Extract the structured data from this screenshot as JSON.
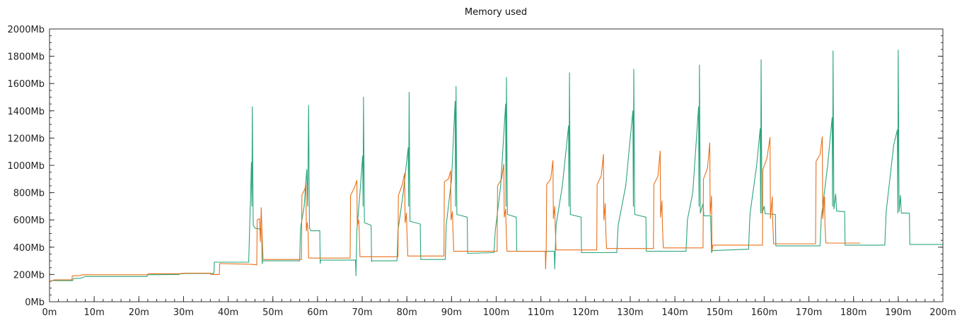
{
  "chart_data": {
    "type": "line",
    "title": "Memory used",
    "xlabel": "",
    "ylabel": "",
    "xlim": [
      0,
      200
    ],
    "ylim": [
      0,
      2000
    ],
    "grid": false,
    "x_ticks": [
      0,
      10,
      20,
      30,
      40,
      50,
      60,
      70,
      80,
      90,
      100,
      110,
      120,
      130,
      140,
      150,
      160,
      170,
      180,
      190,
      200
    ],
    "x_tick_labels": [
      "0m",
      "10m",
      "20m",
      "30m",
      "40m",
      "50m",
      "60m",
      "70m",
      "80m",
      "90m",
      "100m",
      "110m",
      "120m",
      "130m",
      "140m",
      "150m",
      "160m",
      "170m",
      "180m",
      "190m",
      "200m"
    ],
    "y_ticks": [
      0,
      200,
      400,
      600,
      800,
      1000,
      1200,
      1400,
      1600,
      1800,
      2000
    ],
    "y_tick_labels": [
      "0Mb",
      "200Mb",
      "400Mb",
      "600Mb",
      "800Mb",
      "1000Mb",
      "1200Mb",
      "1400Mb",
      "1600Mb",
      "1800Mb",
      "2000Mb"
    ],
    "series": [
      {
        "color": "#2ca57c",
        "points": [
          [
            0,
            145
          ],
          [
            0.5,
            155
          ],
          [
            5.2,
            155
          ],
          [
            5.3,
            170
          ],
          [
            7,
            172
          ],
          [
            8,
            185
          ],
          [
            21.8,
            185
          ],
          [
            21.9,
            198
          ],
          [
            29,
            200
          ],
          [
            29.5,
            208
          ],
          [
            36.8,
            208
          ],
          [
            36.9,
            290
          ],
          [
            44.6,
            290
          ],
          [
            44.8,
            540
          ],
          [
            45,
            760
          ],
          [
            45.2,
            1020
          ],
          [
            45.3,
            700
          ],
          [
            45.4,
            1430
          ],
          [
            45.6,
            560
          ],
          [
            46,
            540
          ],
          [
            47.5,
            530
          ],
          [
            47.6,
            280
          ],
          [
            47.7,
            300
          ],
          [
            56,
            300
          ],
          [
            56.2,
            540
          ],
          [
            57,
            700
          ],
          [
            57.6,
            970
          ],
          [
            57.8,
            700
          ],
          [
            58,
            1440
          ],
          [
            58.2,
            540
          ],
          [
            58.5,
            520
          ],
          [
            60.5,
            520
          ],
          [
            60.6,
            280
          ],
          [
            60.7,
            305
          ],
          [
            68.5,
            305
          ],
          [
            68.6,
            190
          ],
          [
            68.8,
            520
          ],
          [
            69.5,
            800
          ],
          [
            70.1,
            1070
          ],
          [
            70.2,
            700
          ],
          [
            70.3,
            1500
          ],
          [
            70.5,
            580
          ],
          [
            72,
            560
          ],
          [
            72.1,
            295
          ],
          [
            72.2,
            300
          ],
          [
            77.8,
            300
          ],
          [
            78,
            520
          ],
          [
            79.2,
            800
          ],
          [
            80.3,
            1130
          ],
          [
            80.4,
            700
          ],
          [
            80.5,
            1535
          ],
          [
            80.7,
            590
          ],
          [
            83,
            570
          ],
          [
            83.1,
            310
          ],
          [
            88.6,
            310
          ],
          [
            88.8,
            560
          ],
          [
            90,
            900
          ],
          [
            90.8,
            1470
          ],
          [
            90.9,
            700
          ],
          [
            91,
            1580
          ],
          [
            91.2,
            640
          ],
          [
            93.5,
            620
          ],
          [
            93.6,
            355
          ],
          [
            99.5,
            360
          ],
          [
            99.8,
            520
          ],
          [
            101,
            850
          ],
          [
            102.1,
            1450
          ],
          [
            102.2,
            700
          ],
          [
            102.3,
            1645
          ],
          [
            102.5,
            640
          ],
          [
            104.5,
            620
          ],
          [
            104.6,
            370
          ],
          [
            113,
            370
          ],
          [
            113.1,
            240
          ],
          [
            113.4,
            560
          ],
          [
            114.8,
            850
          ],
          [
            116.2,
            1290
          ],
          [
            116.3,
            700
          ],
          [
            116.4,
            1680
          ],
          [
            116.6,
            640
          ],
          [
            119,
            620
          ],
          [
            119.1,
            360
          ],
          [
            127,
            360
          ],
          [
            127.3,
            560
          ],
          [
            129,
            850
          ],
          [
            130.6,
            1400
          ],
          [
            130.7,
            700
          ],
          [
            130.8,
            1705
          ],
          [
            131,
            640
          ],
          [
            133.5,
            620
          ],
          [
            133.6,
            370
          ],
          [
            142.5,
            370
          ],
          [
            142.8,
            600
          ],
          [
            144,
            800
          ],
          [
            145.3,
            1430
          ],
          [
            145.4,
            700
          ],
          [
            145.5,
            1735
          ],
          [
            145.7,
            650
          ],
          [
            146.3,
            720
          ],
          [
            146.5,
            630
          ],
          [
            148,
            630
          ],
          [
            148.2,
            360
          ],
          [
            148.4,
            375
          ],
          [
            156.5,
            385
          ],
          [
            156.8,
            640
          ],
          [
            158.3,
            1000
          ],
          [
            159.1,
            1270
          ],
          [
            159.2,
            650
          ],
          [
            159.3,
            1775
          ],
          [
            159.5,
            650
          ],
          [
            160,
            700
          ],
          [
            160.2,
            645
          ],
          [
            162.5,
            640
          ],
          [
            162.6,
            410
          ],
          [
            172.5,
            410
          ],
          [
            172.8,
            620
          ],
          [
            174.2,
            1000
          ],
          [
            175.2,
            1350
          ],
          [
            175.3,
            700
          ],
          [
            175.4,
            1840
          ],
          [
            175.6,
            680
          ],
          [
            176,
            790
          ],
          [
            176.2,
            665
          ],
          [
            178,
            660
          ],
          [
            178.1,
            415
          ],
          [
            187,
            415
          ],
          [
            187.3,
            660
          ],
          [
            189,
            1150
          ],
          [
            189.8,
            1260
          ],
          [
            189.9,
            650
          ],
          [
            190,
            1845
          ],
          [
            190.2,
            660
          ],
          [
            190.5,
            780
          ],
          [
            190.7,
            650
          ],
          [
            192.5,
            650
          ],
          [
            192.6,
            420
          ],
          [
            200,
            420
          ]
        ]
      },
      {
        "color": "#e8701a",
        "points": [
          [
            0,
            150
          ],
          [
            1,
            160
          ],
          [
            5,
            160
          ],
          [
            5.1,
            190
          ],
          [
            7,
            192
          ],
          [
            7.2,
            198
          ],
          [
            22,
            198
          ],
          [
            22.1,
            205
          ],
          [
            30,
            205
          ],
          [
            30.1,
            210
          ],
          [
            36,
            210
          ],
          [
            36.1,
            200
          ],
          [
            38,
            200
          ],
          [
            38.1,
            280
          ],
          [
            45,
            275
          ],
          [
            46.4,
            270
          ],
          [
            46.5,
            600
          ],
          [
            47,
            610
          ],
          [
            47.2,
            440
          ],
          [
            47.4,
            690
          ],
          [
            47.6,
            480
          ],
          [
            47.8,
            310
          ],
          [
            56.4,
            310
          ],
          [
            56.5,
            780
          ],
          [
            57.2,
            830
          ],
          [
            57.4,
            870
          ],
          [
            57.5,
            520
          ],
          [
            57.7,
            580
          ],
          [
            57.9,
            500
          ],
          [
            58,
            320
          ],
          [
            67.3,
            320
          ],
          [
            67.4,
            780
          ],
          [
            68.3,
            840
          ],
          [
            68.8,
            890
          ],
          [
            68.9,
            560
          ],
          [
            69.2,
            600
          ],
          [
            69.3,
            550
          ],
          [
            69.5,
            330
          ],
          [
            78,
            330
          ],
          [
            78.1,
            780
          ],
          [
            79,
            860
          ],
          [
            79.5,
            940
          ],
          [
            79.6,
            580
          ],
          [
            79.9,
            650
          ],
          [
            80,
            530
          ],
          [
            80.2,
            335
          ],
          [
            88.3,
            335
          ],
          [
            88.4,
            880
          ],
          [
            89.3,
            900
          ],
          [
            89.8,
            960
          ],
          [
            89.9,
            600
          ],
          [
            90.2,
            660
          ],
          [
            90.3,
            550
          ],
          [
            90.5,
            370
          ],
          [
            100.2,
            370
          ],
          [
            100.3,
            850
          ],
          [
            101.2,
            900
          ],
          [
            101.7,
            1010
          ],
          [
            101.8,
            620
          ],
          [
            102.1,
            680
          ],
          [
            102.2,
            570
          ],
          [
            102.4,
            370
          ],
          [
            111,
            370
          ],
          [
            111.05,
            240
          ],
          [
            111.2,
            370
          ],
          [
            111.3,
            860
          ],
          [
            112.2,
            900
          ],
          [
            112.7,
            1035
          ],
          [
            112.8,
            610
          ],
          [
            113.1,
            700
          ],
          [
            113.2,
            560
          ],
          [
            113.4,
            380
          ],
          [
            122.5,
            380
          ],
          [
            122.6,
            860
          ],
          [
            123.5,
            920
          ],
          [
            124,
            1080
          ],
          [
            124.1,
            600
          ],
          [
            124.4,
            720
          ],
          [
            124.5,
            560
          ],
          [
            124.7,
            390
          ],
          [
            135.2,
            390
          ],
          [
            135.3,
            860
          ],
          [
            136.2,
            920
          ],
          [
            136.7,
            1105
          ],
          [
            136.8,
            620
          ],
          [
            137.1,
            740
          ],
          [
            137.2,
            580
          ],
          [
            137.4,
            395
          ],
          [
            146.3,
            395
          ],
          [
            146.4,
            900
          ],
          [
            147.3,
            980
          ],
          [
            147.8,
            1165
          ],
          [
            147.9,
            640
          ],
          [
            148.2,
            775
          ],
          [
            148.3,
            370
          ],
          [
            148.5,
            415
          ],
          [
            159.6,
            415
          ],
          [
            159.7,
            970
          ],
          [
            160.6,
            1050
          ],
          [
            161.3,
            1205
          ],
          [
            161.4,
            610
          ],
          [
            161.8,
            770
          ],
          [
            161.9,
            600
          ],
          [
            162.1,
            425
          ],
          [
            171.5,
            425
          ],
          [
            171.6,
            1030
          ],
          [
            172.5,
            1080
          ],
          [
            173,
            1210
          ],
          [
            173.1,
            610
          ],
          [
            173.5,
            770
          ],
          [
            173.6,
            560
          ],
          [
            173.8,
            430
          ],
          [
            181.5,
            430
          ]
        ]
      }
    ]
  }
}
